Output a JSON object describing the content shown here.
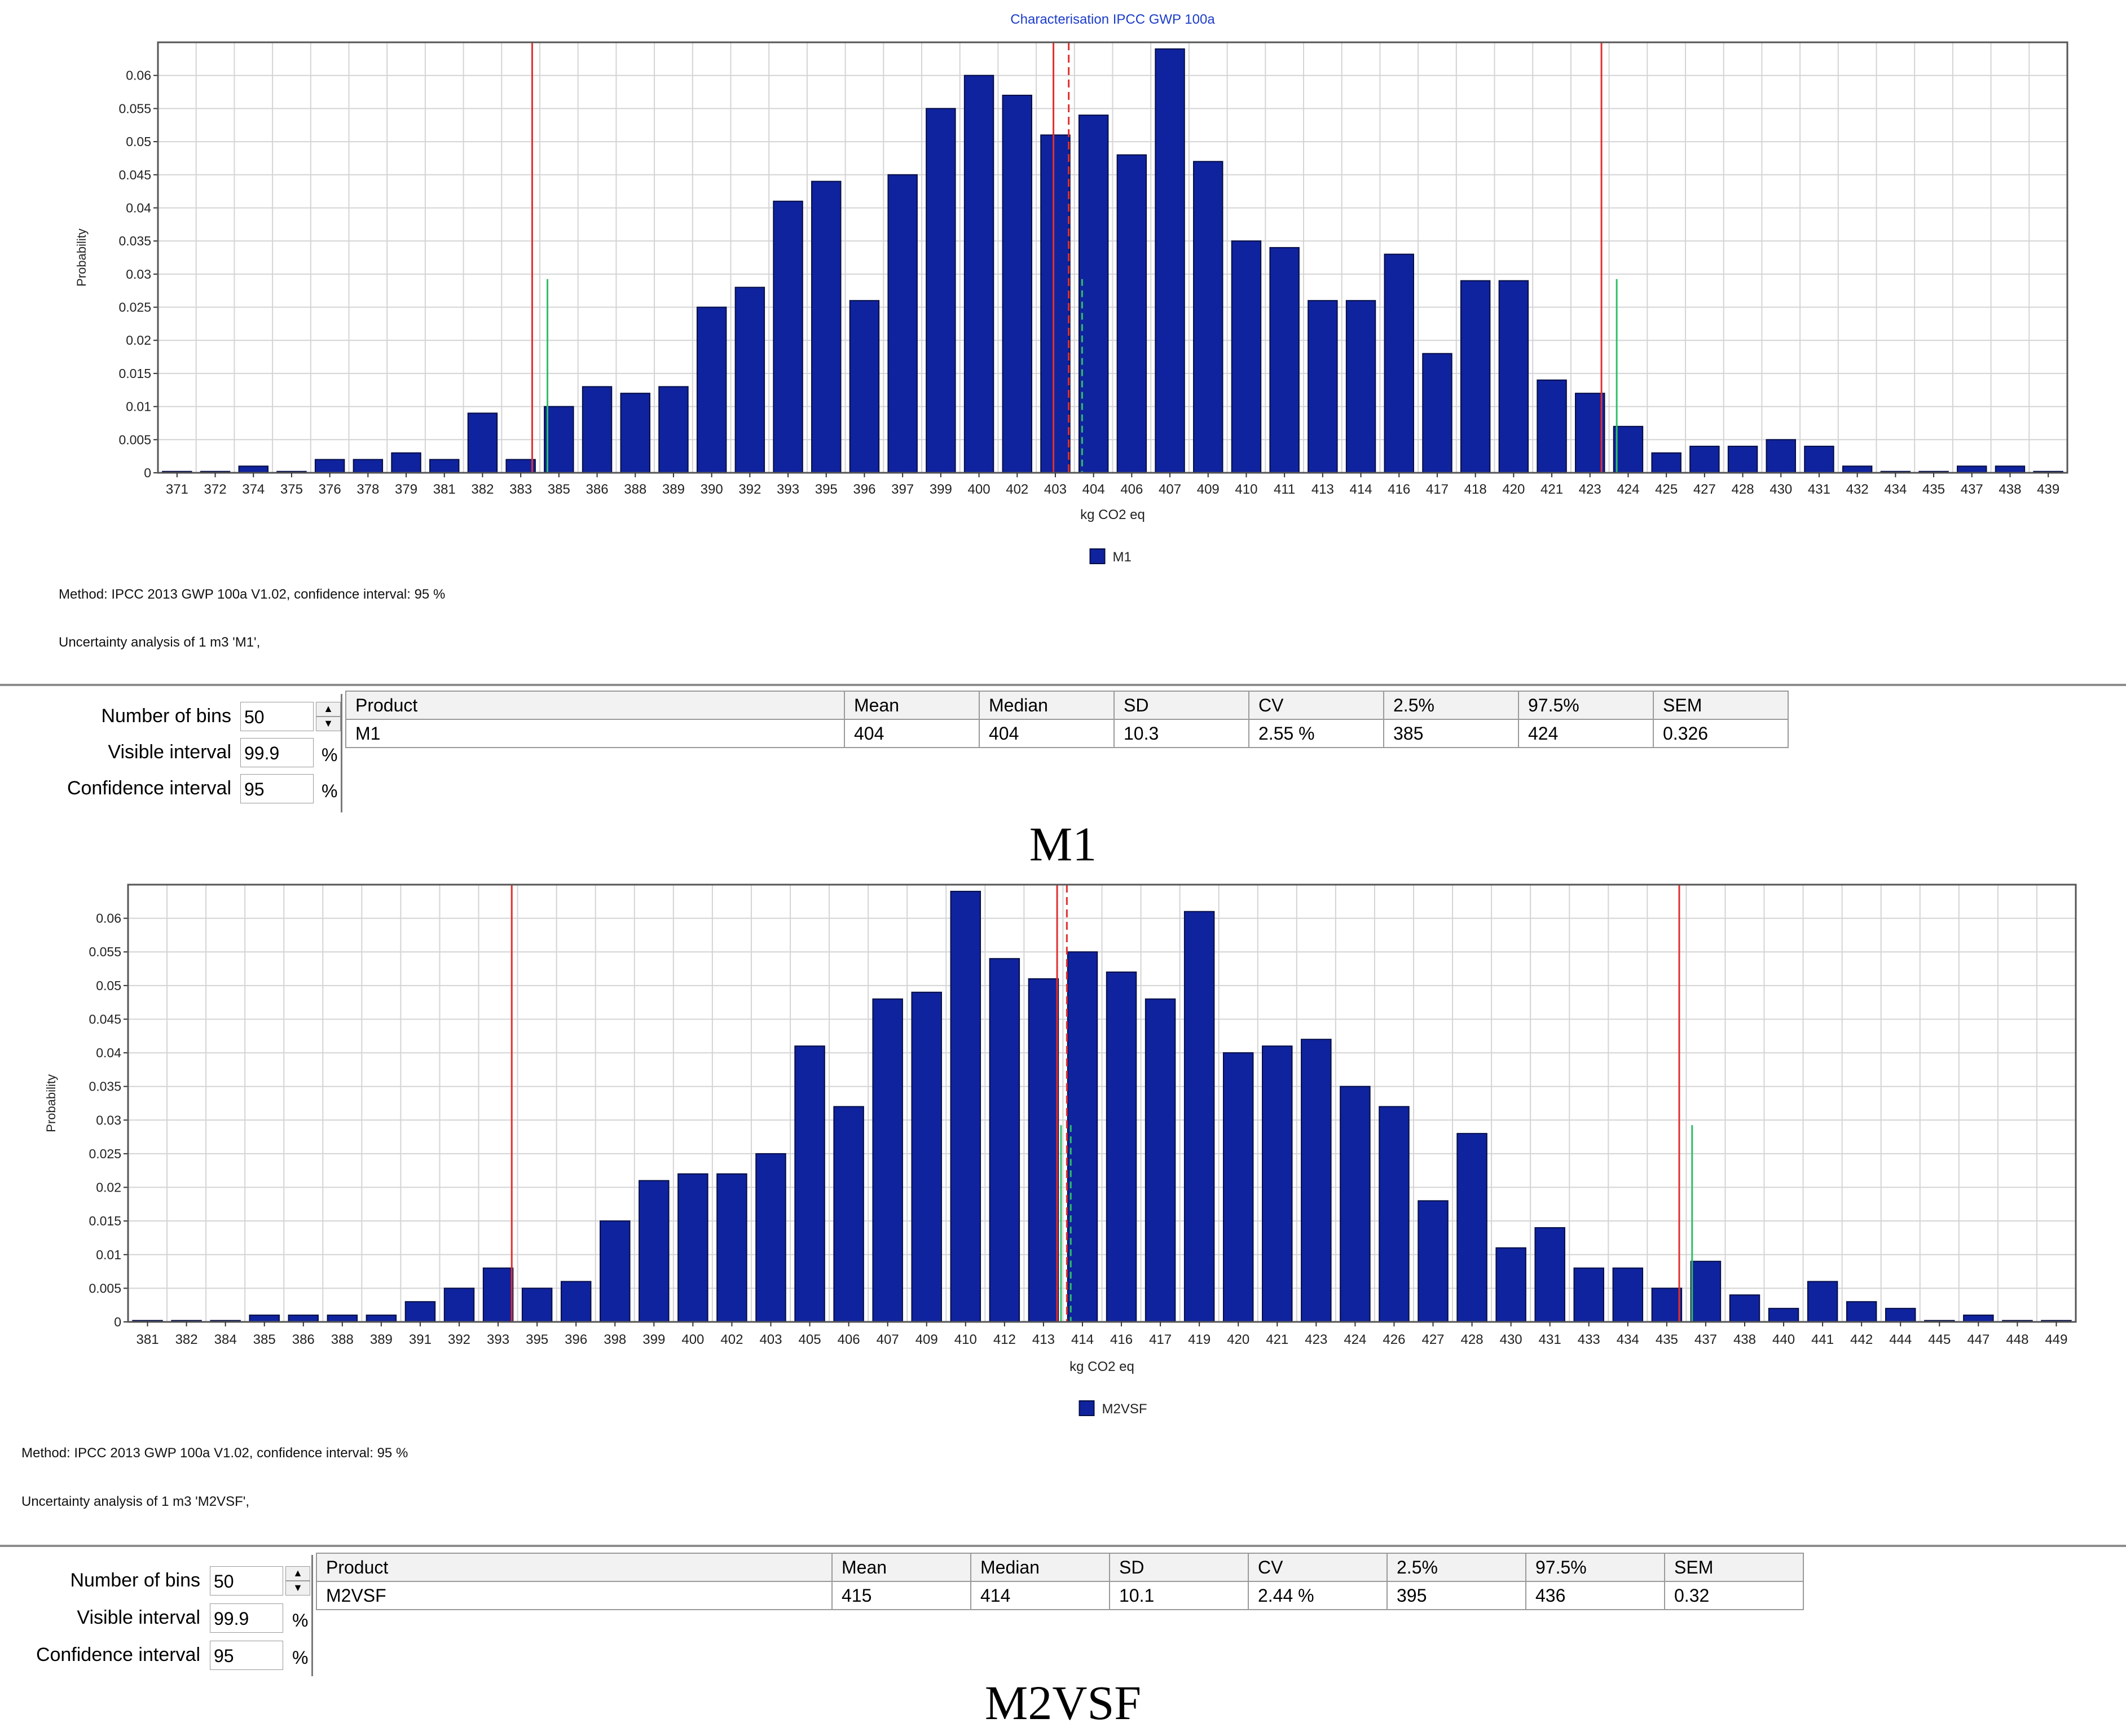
{
  "panels": [
    {
      "chart_title": "Characterisation IPCC GWP 100a",
      "legend_label": "M1",
      "method_text": "Method: IPCC 2013  GWP 100a V1.02, confidence  interval: 95 %",
      "analysis_text": "Uncertainty analysis of 1 m3 'M1',",
      "caption": "M1",
      "controls": {
        "bins_label": "Number of bins",
        "bins_value": "50",
        "visible_label": "Visible interval",
        "visible_value": "99.9",
        "confidence_label": "Confidence interval",
        "confidence_value": "95",
        "pct": "%"
      },
      "table": {
        "headers": [
          "Product",
          "Mean",
          "Median",
          "SD",
          "CV",
          "2.5%",
          "97.5%",
          "SEM"
        ],
        "row": [
          "M1",
          "404",
          "404",
          "10.3",
          "2.55 %",
          "385",
          "424",
          "0.326"
        ]
      }
    },
    {
      "chart_title": "",
      "legend_label": "M2VSF",
      "method_text": "Method: IPCC 2013  GWP 100a V1.02, confidence  interval: 95 %",
      "analysis_text": "Uncertainty analysis of 1 m3 'M2VSF',",
      "caption": "M2VSF",
      "controls": {
        "bins_label": "Number of bins",
        "bins_value": "50",
        "visible_label": "Visible interval",
        "visible_value": "99.9",
        "confidence_label": "Confidence interval",
        "confidence_value": "95",
        "pct": "%"
      },
      "table": {
        "headers": [
          "Product",
          "Mean",
          "Median",
          "SD",
          "CV",
          "2.5%",
          "97.5%",
          "SEM"
        ],
        "row": [
          "M2VSF",
          "415",
          "414",
          "10.1",
          "2.44 %",
          "395",
          "436",
          "0.32"
        ]
      }
    }
  ],
  "chart_data": [
    {
      "type": "bar",
      "title": "Characterisation IPCC GWP 100a",
      "xlabel": "kg CO2 eq",
      "ylabel": "Probability",
      "ylim": [
        0,
        0.065
      ],
      "y_ticks": [
        0,
        0.005,
        0.01,
        0.015,
        0.02,
        0.025,
        0.03,
        0.035,
        0.04,
        0.045,
        0.05,
        0.055,
        0.06
      ],
      "y_tick_labels": [
        "0",
        "0.005",
        "0.01",
        "0.015",
        "0.02",
        "0.025",
        "0.03",
        "0.035",
        "0.04",
        "0.045",
        "0.05",
        "0.055",
        "0.06"
      ],
      "grid": true,
      "legend_position": "bottom-center",
      "bar_color": "#10239e",
      "categories": [
        "371",
        "372",
        "374",
        "375",
        "376",
        "378",
        "379",
        "381",
        "382",
        "383",
        "385",
        "386",
        "388",
        "389",
        "390",
        "392",
        "393",
        "395",
        "396",
        "397",
        "399",
        "400",
        "402",
        "403",
        "404",
        "406",
        "407",
        "409",
        "410",
        "411",
        "413",
        "414",
        "416",
        "417",
        "418",
        "420",
        "421",
        "423",
        "424",
        "425",
        "427",
        "428",
        "430",
        "431",
        "432",
        "434",
        "435",
        "437",
        "438",
        "439"
      ],
      "series": [
        {
          "name": "M1",
          "values": [
            0.0002,
            0.0002,
            0.001,
            0.0002,
            0.002,
            0.002,
            0.003,
            0.002,
            0.009,
            0.002,
            0.01,
            0.013,
            0.012,
            0.013,
            0.025,
            0.028,
            0.041,
            0.044,
            0.026,
            0.045,
            0.055,
            0.06,
            0.057,
            0.051,
            0.054,
            0.048,
            0.064,
            0.047,
            0.035,
            0.034,
            0.026,
            0.026,
            0.033,
            0.018,
            0.029,
            0.029,
            0.014,
            0.012,
            0.007,
            0.003,
            0.004,
            0.004,
            0.005,
            0.004,
            0.001,
            0.0002,
            0.0002,
            0.001,
            0.001,
            0.0002
          ]
        }
      ],
      "reference_lines": [
        {
          "label": "2.5%",
          "x": 385,
          "category_index": 9.8,
          "style": "solid",
          "color": "#e03030"
        },
        {
          "label": "Mean",
          "x": 404,
          "category_index": 23.45,
          "style": "solid",
          "color": "#e03030"
        },
        {
          "label": "Median",
          "x": 404,
          "category_index": 23.85,
          "style": "dashed",
          "color": "#e03030"
        },
        {
          "label": "97.5%",
          "x": 424,
          "category_index": 37.8,
          "style": "solid",
          "color": "#e03030"
        }
      ],
      "green_markers": [
        {
          "category_index": 10.2,
          "style": "solid"
        },
        {
          "category_index": 24.2,
          "style": "dashed"
        },
        {
          "category_index": 38.2,
          "style": "solid"
        }
      ]
    },
    {
      "type": "bar",
      "title": "",
      "xlabel": "kg CO2 eq",
      "ylabel": "Probability",
      "ylim": [
        0,
        0.065
      ],
      "y_ticks": [
        0,
        0.005,
        0.01,
        0.015,
        0.02,
        0.025,
        0.03,
        0.035,
        0.04,
        0.045,
        0.05,
        0.055,
        0.06
      ],
      "y_tick_labels": [
        "0",
        "0.005",
        "0.01",
        "0.015",
        "0.02",
        "0.025",
        "0.03",
        "0.035",
        "0.04",
        "0.045",
        "0.05",
        "0.055",
        "0.06"
      ],
      "grid": true,
      "legend_position": "bottom-center",
      "bar_color": "#10239e",
      "categories": [
        "381",
        "382",
        "384",
        "385",
        "386",
        "388",
        "389",
        "391",
        "392",
        "393",
        "395",
        "396",
        "398",
        "399",
        "400",
        "402",
        "403",
        "405",
        "406",
        "407",
        "409",
        "410",
        "412",
        "413",
        "414",
        "416",
        "417",
        "419",
        "420",
        "421",
        "423",
        "424",
        "426",
        "427",
        "428",
        "430",
        "431",
        "433",
        "434",
        "435",
        "437",
        "438",
        "440",
        "441",
        "442",
        "444",
        "445",
        "447",
        "448",
        "449"
      ],
      "series": [
        {
          "name": "M2VSF",
          "values": [
            0.0002,
            0.0002,
            0.0002,
            0.001,
            0.001,
            0.001,
            0.001,
            0.003,
            0.005,
            0.008,
            0.005,
            0.006,
            0.015,
            0.021,
            0.022,
            0.022,
            0.025,
            0.041,
            0.032,
            0.048,
            0.049,
            0.064,
            0.054,
            0.051,
            0.055,
            0.052,
            0.048,
            0.061,
            0.04,
            0.041,
            0.042,
            0.035,
            0.032,
            0.018,
            0.028,
            0.011,
            0.014,
            0.008,
            0.008,
            0.005,
            0.009,
            0.004,
            0.002,
            0.006,
            0.003,
            0.002,
            0.0002,
            0.001,
            0.0002,
            0.0002
          ]
        }
      ],
      "reference_lines": [
        {
          "label": "2.5%",
          "x": 395,
          "category_index": 9.85,
          "style": "solid",
          "color": "#e03030"
        },
        {
          "label": "Mean",
          "x": 415,
          "category_index": 23.85,
          "style": "solid",
          "color": "#e03030"
        },
        {
          "label": "Median",
          "x": 414,
          "category_index": 24.1,
          "style": "dashed",
          "color": "#e03030"
        },
        {
          "label": "97.5%",
          "x": 436,
          "category_index": 39.82,
          "style": "solid",
          "color": "#e03030"
        }
      ],
      "green_markers": [
        {
          "category_index": 23.95,
          "style": "solid"
        },
        {
          "category_index": 24.2,
          "style": "dashed"
        },
        {
          "category_index": 40.15,
          "style": "solid"
        }
      ]
    }
  ]
}
